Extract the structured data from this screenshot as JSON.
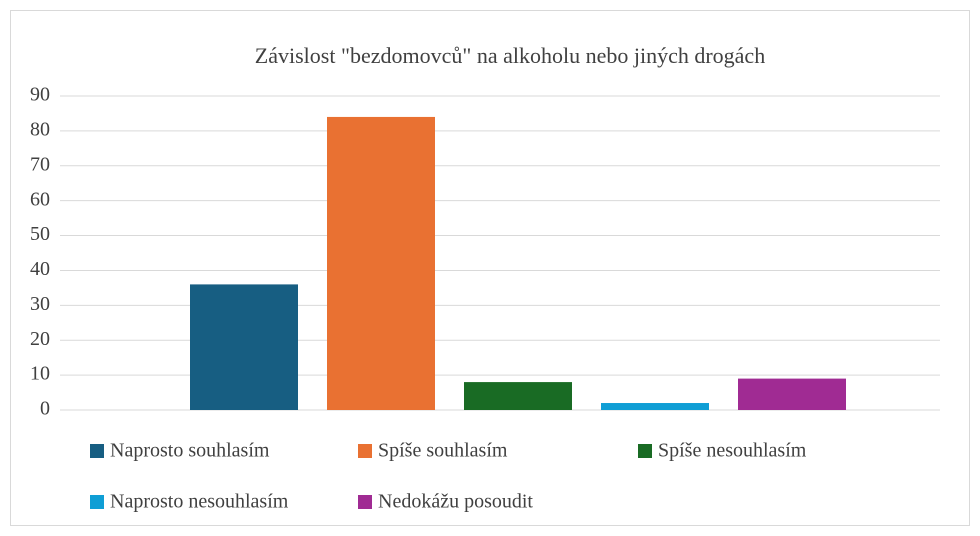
{
  "chart_data": {
    "type": "bar",
    "title": "Závislost \"bezdomovců\" na alkoholu nebo jiných drogách",
    "categories": [
      null
    ],
    "series": [
      {
        "name": "Naprosto souhlasím",
        "color": "#175e82",
        "values": [
          36
        ]
      },
      {
        "name": "Spíše souhlasím",
        "color": "#e97132",
        "values": [
          84
        ]
      },
      {
        "name": "Spíše nesouhlasím",
        "color": "#196b24",
        "values": [
          8
        ]
      },
      {
        "name": "Naprosto nesouhlasím",
        "color": "#0f9ed5",
        "values": [
          2
        ]
      },
      {
        "name": "Nedokážu posoudit",
        "color": "#a02b93",
        "values": [
          9
        ]
      }
    ],
    "ylim": [
      0,
      90
    ],
    "yticks": [
      0,
      10,
      20,
      30,
      40,
      50,
      60,
      70,
      80,
      90
    ],
    "grid": true,
    "legend": "bottom"
  }
}
